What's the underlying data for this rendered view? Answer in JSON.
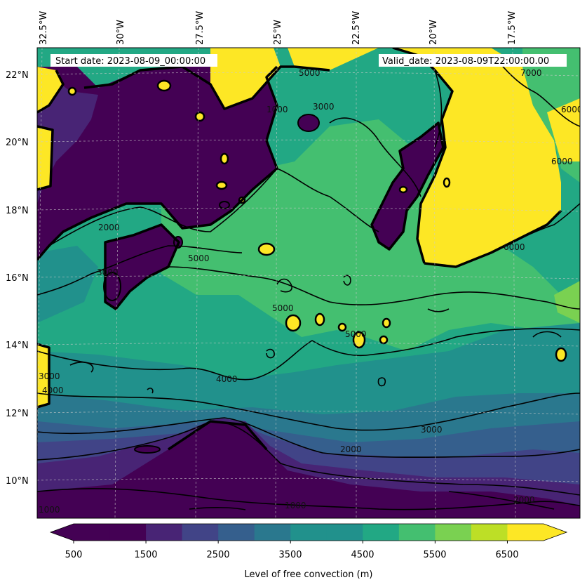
{
  "header": {
    "start_date": "Start date: 2023-08-09_00:00:00",
    "valid_date": "Valid_date: 2023-08-09T22:00:00.00"
  },
  "longitude_labels": [
    "32.5°W",
    "30°W",
    "27.5°W",
    "25°W",
    "22.5°W",
    "20°W",
    "17.5°W"
  ],
  "latitude_labels": [
    "22°N",
    "20°N",
    "18°N",
    "16°N",
    "14°N",
    "12°N",
    "10°N"
  ],
  "colorbar": {
    "label": "Level of free convection (m)",
    "tick_labels": [
      "500",
      "1500",
      "2500",
      "3500",
      "4500",
      "5500",
      "6500"
    ],
    "levels": [
      500,
      1000,
      1500,
      2000,
      2500,
      3000,
      3500,
      4000,
      4500,
      5000,
      5500,
      6000,
      6500,
      7000
    ],
    "colors": [
      "#440154",
      "#482475",
      "#414487",
      "#355f8d",
      "#2a788e",
      "#21918c",
      "#22a884",
      "#44bf70",
      "#7ad151",
      "#bddf26",
      "#fde725"
    ],
    "extend_low": "#440154",
    "extend_high": "#fde725"
  },
  "contour_labels": [
    "5000",
    "5000",
    "5000",
    "5000",
    "4000",
    "4000",
    "3000",
    "3000",
    "3000",
    "2000",
    "2000",
    "1000",
    "1000",
    "6000",
    "6000",
    "7000",
    "1000",
    "2000",
    "3000",
    "6000"
  ]
}
